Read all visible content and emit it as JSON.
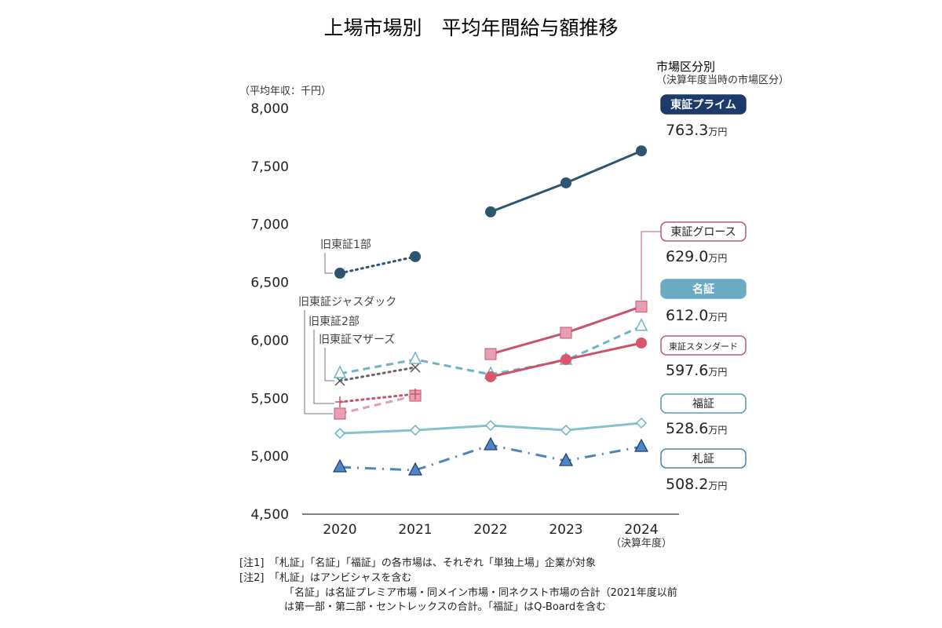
{
  "chart_data": {
    "type": "line",
    "title": "上場市場別　平均年間給与額推移",
    "ylabel": "（平均年収：千円）",
    "xlabel": "（決算年度）",
    "ylim": [
      4500,
      8000
    ],
    "yticks": [
      "4,500",
      "5,000",
      "5,500",
      "6,000",
      "6,500",
      "7,000",
      "7,500",
      "8,000"
    ],
    "ytick_values": [
      4500,
      5000,
      5500,
      6000,
      6500,
      7000,
      7500,
      8000
    ],
    "categories": [
      "2020",
      "2021",
      "2022",
      "2023",
      "2024"
    ],
    "grid": false,
    "legend_title": "市場区分別",
    "legend_subtitle": "（決算年度当時の市場区分）",
    "series": [
      {
        "name": "東証プライム",
        "values": [
          null,
          null,
          7107,
          7357,
          7633
        ],
        "color": "#2d5570",
        "marker": "circle",
        "line": "solid",
        "value_label": "763.3",
        "unit": "万円",
        "box_style": "filled",
        "box_color": "#1d3a6b"
      },
      {
        "name": "東証グロース",
        "values": [
          null,
          null,
          5881,
          6064,
          6290
        ],
        "color": "#c9546a",
        "marker": "square",
        "line": "solid",
        "value_label": "629.0",
        "unit": "万円",
        "box_style": "outline",
        "box_color": "#b85a70"
      },
      {
        "name": "名証",
        "values": [
          5712,
          5834,
          5705,
          5827,
          6120
        ],
        "color": "#6fb3c6",
        "marker": "triangle-open",
        "line": "dashed",
        "value_label": "612.0",
        "unit": "万円",
        "box_style": "filled",
        "box_color": "#6aaac3"
      },
      {
        "name": "東証スタンダード",
        "values": [
          null,
          null,
          5685,
          5834,
          5976
        ],
        "color": "#c9546a",
        "marker": "circle-red",
        "line": "solid",
        "value_label": "597.6",
        "unit": "万円",
        "box_style": "outline",
        "box_color": "#b85a70"
      },
      {
        "name": "福証",
        "values": [
          5197,
          5224,
          5265,
          5224,
          5286
        ],
        "color": "#86c2cc",
        "marker": "diamond-open",
        "line": "solid",
        "value_label": "528.6",
        "unit": "万円",
        "box_style": "outline",
        "box_color": "#5a9aa8"
      },
      {
        "name": "札証",
        "values": [
          4906,
          4879,
          5096,
          4960,
          5082
        ],
        "color": "#4f86b8",
        "marker": "triangle-filled",
        "line": "dashdot",
        "value_label": "508.2",
        "unit": "万円",
        "box_style": "outline",
        "box_color": "#4a7fa8"
      },
      {
        "name": "旧東証1部",
        "values": [
          6578,
          6721,
          null,
          null,
          null
        ],
        "color": "#2d5570",
        "marker": "circle",
        "line": "dotted"
      },
      {
        "name": "旧東証ジャスダック",
        "values": [
          5367,
          5522,
          null,
          null,
          null
        ],
        "color": "#e0a0b0",
        "marker": "square",
        "line": "dashed"
      },
      {
        "name": "旧東証2部",
        "values": [
          5468,
          5536,
          null,
          null,
          null
        ],
        "color": "#c9546a",
        "marker": "plus",
        "line": "dotted"
      },
      {
        "name": "旧東証マザーズ",
        "values": [
          5651,
          5766,
          null,
          null,
          null
        ],
        "color": "#666",
        "marker": "x",
        "line": "dotted"
      }
    ]
  },
  "notes": [
    "[注1]　「札証」「名証」「福証」の各市場は、それぞれ「単独上場」企業が対象",
    "[注2]　「札証」はアンビシャスを含む",
    "「名証」は名証プレミア市場・同メイン市場・同ネクスト市場の合計（2021年度以前",
    "は第一部・第二部・セントレックスの合計。「福証」はQ-Boardを含む"
  ]
}
